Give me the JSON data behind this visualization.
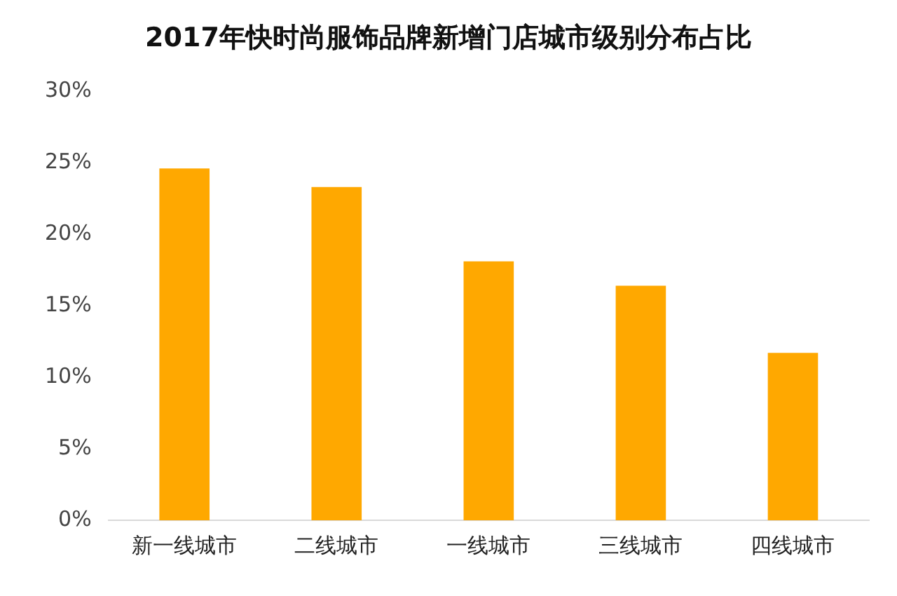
{
  "chart_data": {
    "type": "bar",
    "title": "2017年快时尚服饰品牌新增门店城市级别分布占比",
    "categories": [
      "新一线城市",
      "二线城市",
      "一线城市",
      "三线城市",
      "四线城市"
    ],
    "values": [
      24.6,
      23.3,
      18.1,
      16.4,
      11.7
    ],
    "color": "#ffa800",
    "ylim": [
      0,
      30
    ],
    "yticks": [
      {
        "value": 0,
        "label": "0%"
      },
      {
        "value": 5,
        "label": "5%"
      },
      {
        "value": 10,
        "label": "10%"
      },
      {
        "value": 15,
        "label": "15%"
      },
      {
        "value": 20,
        "label": "20%"
      },
      {
        "value": 25,
        "label": "25%"
      },
      {
        "value": 30,
        "label": "30%"
      }
    ],
    "grid": false,
    "legend": false
  }
}
